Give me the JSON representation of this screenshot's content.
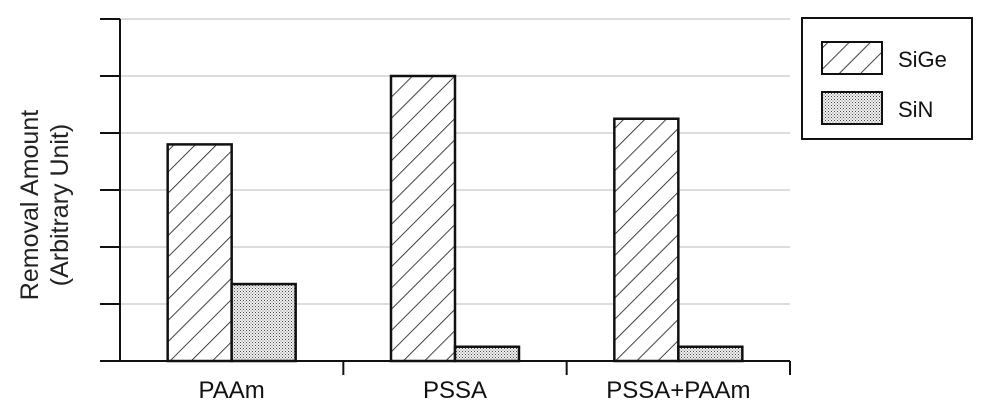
{
  "chart_data": {
    "type": "bar",
    "ylabel_line1": "Removal Amount",
    "ylabel_line2": "(Arbitrary Unit)",
    "categories": [
      "PAAm",
      "PSSA",
      "PSSA+PAAm"
    ],
    "series": [
      {
        "name": "SiGe",
        "values": [
          3.8,
          5.0,
          4.25
        ],
        "pattern": "diagonal-hatch"
      },
      {
        "name": "SiN",
        "values": [
          1.35,
          0.25,
          0.25
        ],
        "pattern": "dots"
      }
    ],
    "ylim": [
      0,
      6
    ],
    "yticks": [
      1,
      2,
      3,
      4,
      5,
      6
    ],
    "grid": true,
    "legend_position": "right",
    "colors": {
      "stroke": "#111111",
      "grid": "#bbbbbb",
      "background": "#ffffff"
    }
  }
}
